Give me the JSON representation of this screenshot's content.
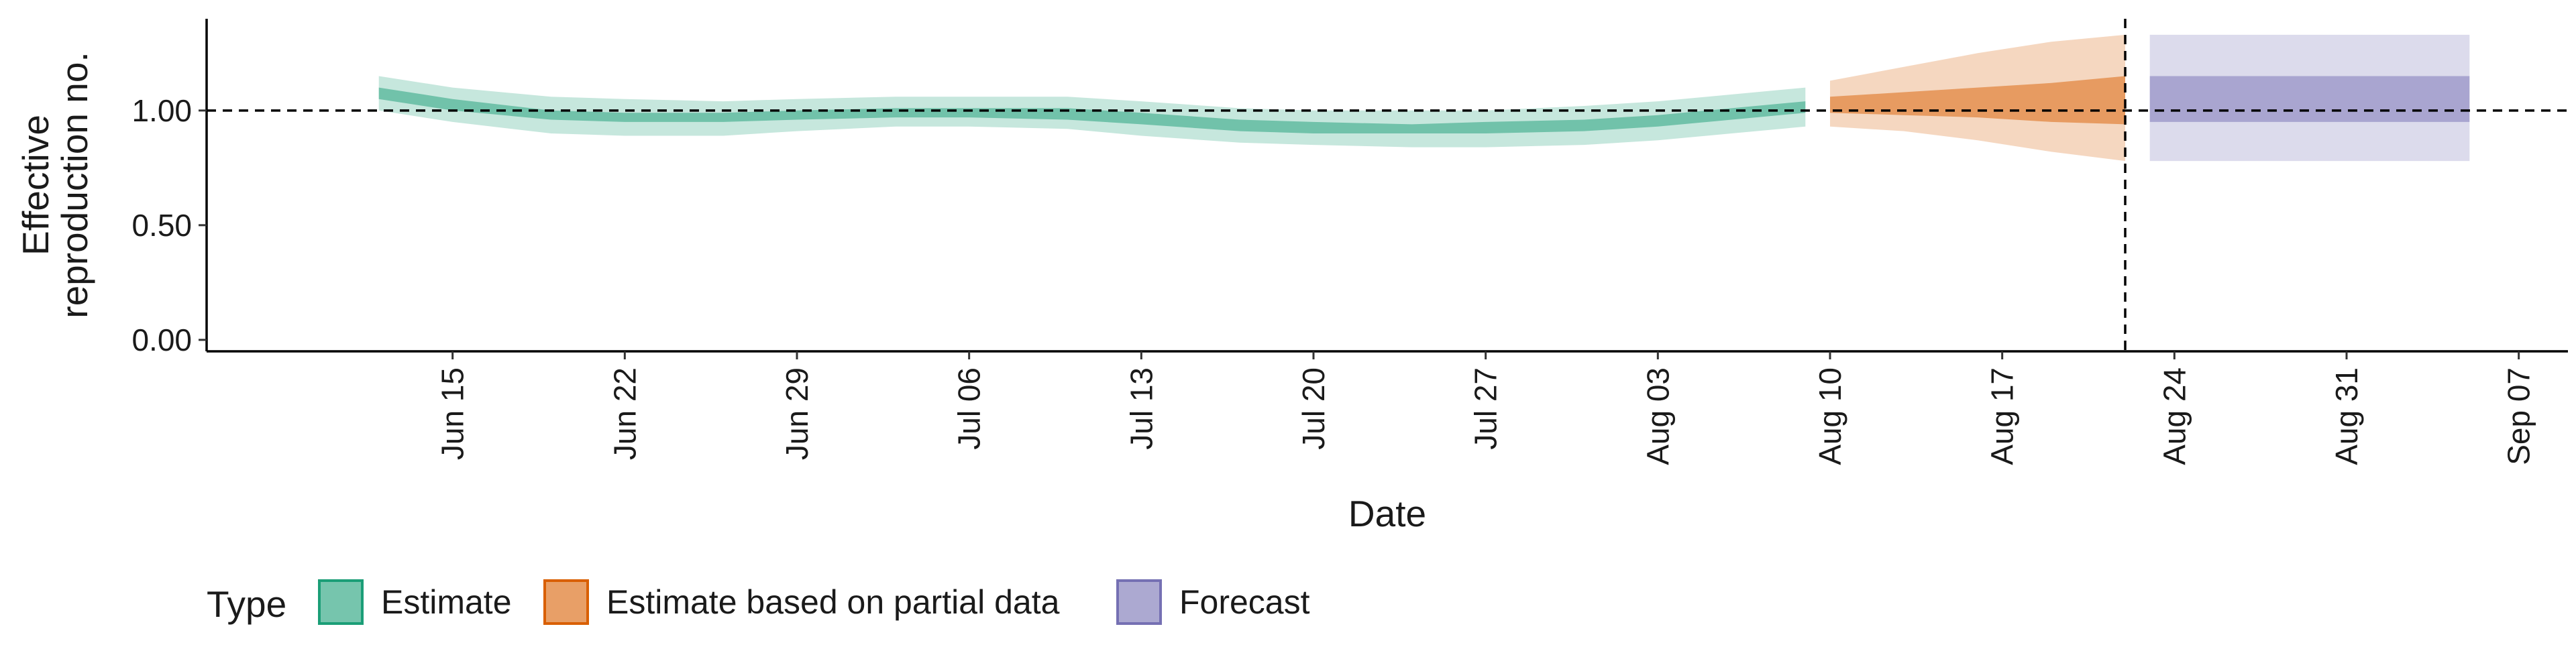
{
  "chart_data": {
    "type": "area",
    "title": "",
    "xlabel": "Date",
    "ylabel_lines": [
      "Effective",
      "reproduction no."
    ],
    "ylim": [
      -0.05,
      1.4
    ],
    "yticks": [
      0.0,
      0.5,
      1.0
    ],
    "ytick_labels": [
      "0.00",
      "0.50",
      "1.00"
    ],
    "xlim": [
      "2020-06-05",
      "2020-09-09"
    ],
    "xticks": [
      "2020-06-15",
      "2020-06-22",
      "2020-06-29",
      "2020-07-06",
      "2020-07-13",
      "2020-07-20",
      "2020-07-27",
      "2020-08-03",
      "2020-08-10",
      "2020-08-17",
      "2020-08-24",
      "2020-08-31",
      "2020-09-07"
    ],
    "xtick_labels": [
      "Jun 15",
      "Jun 22",
      "Jun 29",
      "Jul 06",
      "Jul 13",
      "Jul 20",
      "Jul 27",
      "Aug 03",
      "Aug 10",
      "Aug 17",
      "Aug 24",
      "Aug 31",
      "Sep 07"
    ],
    "reference_hline": 1.0,
    "reference_vline": "2020-08-22",
    "grid": false,
    "legend_position": "bottom-left",
    "legend_title": "Type",
    "series": [
      {
        "name": "Estimate",
        "color": "#1b9e77",
        "x": [
          "2020-06-12",
          "2020-06-15",
          "2020-06-19",
          "2020-06-22",
          "2020-06-26",
          "2020-06-29",
          "2020-07-03",
          "2020-07-06",
          "2020-07-10",
          "2020-07-13",
          "2020-07-17",
          "2020-07-20",
          "2020-07-24",
          "2020-07-27",
          "2020-07-31",
          "2020-08-03",
          "2020-08-06",
          "2020-08-09"
        ],
        "outer_lower": [
          1.0,
          0.95,
          0.9,
          0.89,
          0.89,
          0.91,
          0.93,
          0.93,
          0.92,
          0.89,
          0.86,
          0.85,
          0.84,
          0.84,
          0.85,
          0.87,
          0.9,
          0.93
        ],
        "inner_lower": [
          1.05,
          1.0,
          0.96,
          0.95,
          0.95,
          0.96,
          0.97,
          0.97,
          0.96,
          0.94,
          0.91,
          0.9,
          0.9,
          0.9,
          0.91,
          0.93,
          0.96,
          0.99
        ],
        "inner_upper": [
          1.1,
          1.05,
          1.0,
          0.99,
          0.99,
          1.0,
          1.01,
          1.01,
          1.01,
          0.99,
          0.96,
          0.95,
          0.94,
          0.95,
          0.96,
          0.98,
          1.01,
          1.04
        ],
        "outer_upper": [
          1.15,
          1.1,
          1.06,
          1.05,
          1.04,
          1.05,
          1.06,
          1.06,
          1.06,
          1.04,
          1.01,
          1.0,
          1.0,
          1.0,
          1.02,
          1.04,
          1.07,
          1.1
        ]
      },
      {
        "name": "Estimate based on partial data",
        "color": "#d95f02",
        "x": [
          "2020-08-10",
          "2020-08-13",
          "2020-08-16",
          "2020-08-19",
          "2020-08-22"
        ],
        "outer_lower": [
          0.93,
          0.91,
          0.87,
          0.82,
          0.78
        ],
        "inner_lower": [
          0.99,
          0.98,
          0.97,
          0.95,
          0.94
        ],
        "inner_upper": [
          1.06,
          1.08,
          1.1,
          1.12,
          1.15
        ],
        "outer_upper": [
          1.13,
          1.19,
          1.25,
          1.3,
          1.33
        ]
      },
      {
        "name": "Forecast",
        "color": "#7570b3",
        "x": [
          "2020-08-23",
          "2020-09-05"
        ],
        "outer_lower": [
          0.78,
          0.78
        ],
        "inner_lower": [
          0.95,
          0.95
        ],
        "inner_upper": [
          1.15,
          1.15
        ],
        "outer_upper": [
          1.33,
          1.33
        ]
      }
    ]
  }
}
